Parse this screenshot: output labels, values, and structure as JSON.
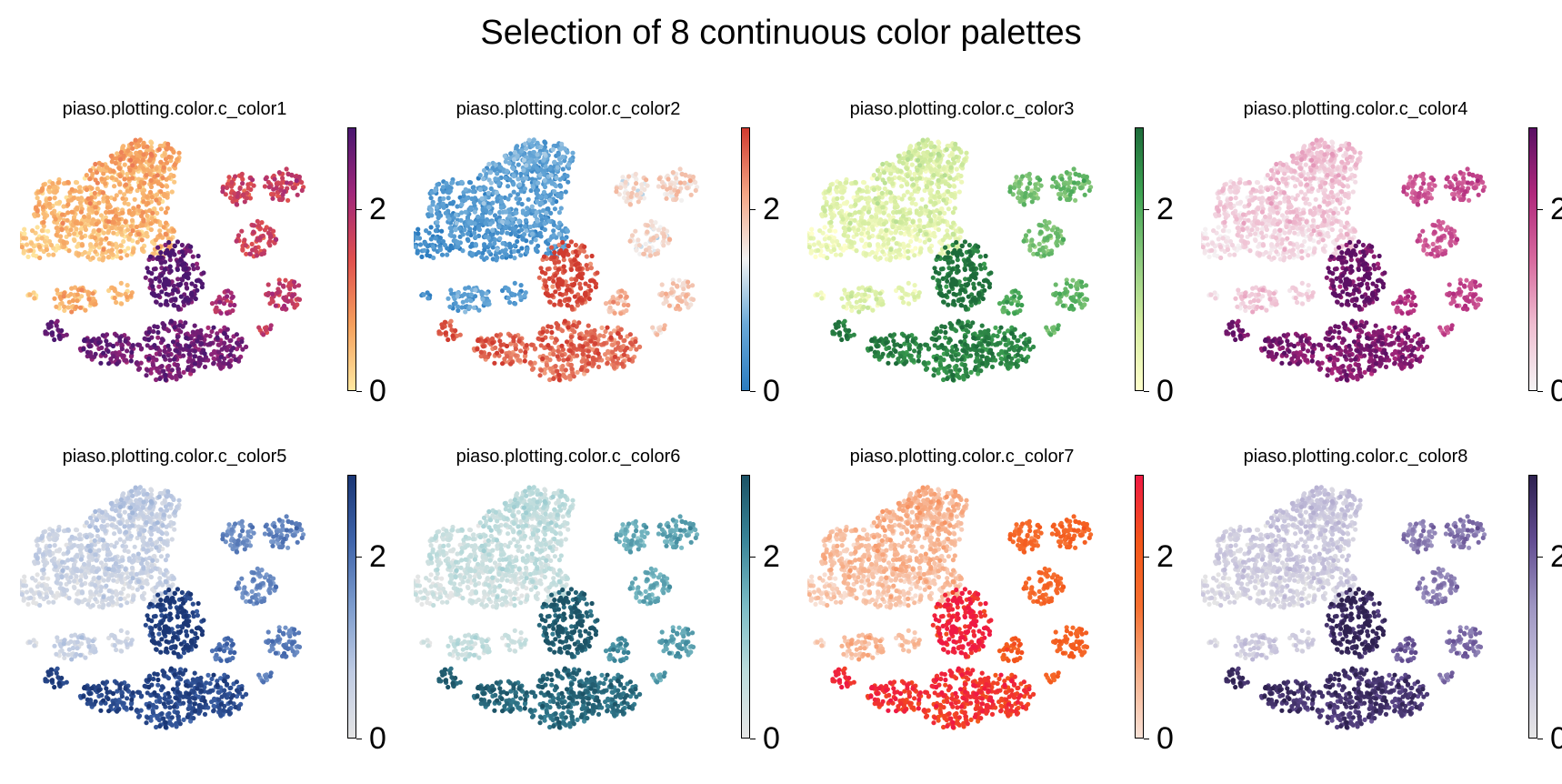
{
  "chart_data": {
    "type": "scatter",
    "title": "Selection of 8 continuous color palettes",
    "colorbar_ticks": [
      0,
      2
    ],
    "value_range": [
      0,
      2.9
    ],
    "grid": false,
    "panels": [
      {
        "title": "piaso.plotting.color.c_color1",
        "colors": [
          "#ffe7a0",
          "#f59f5c",
          "#e0504e",
          "#a0277a",
          "#4a1770"
        ]
      },
      {
        "title": "piaso.plotting.color.c_color2",
        "colors": [
          "#2b7cc0",
          "#6aa9d8",
          "#f2f2f2",
          "#f4a584",
          "#d03b2f"
        ]
      },
      {
        "title": "piaso.plotting.color.c_color3",
        "colors": [
          "#ffffcc",
          "#d5eda0",
          "#8cca7e",
          "#3fa453",
          "#1d6b3a"
        ]
      },
      {
        "title": "piaso.plotting.color.c_color4",
        "colors": [
          "#f5f3f4",
          "#efbdd0",
          "#d7699e",
          "#b0287c",
          "#5a1064"
        ]
      },
      {
        "title": "piaso.plotting.color.c_color5",
        "colors": [
          "#e4e4e4",
          "#bfcbe3",
          "#7d9ccd",
          "#3f64aa",
          "#1a3675"
        ]
      },
      {
        "title": "piaso.plotting.color.c_color6",
        "colors": [
          "#e6e6e6",
          "#bcdcdc",
          "#7cbcc6",
          "#3a8599",
          "#1c5366"
        ]
      },
      {
        "title": "piaso.plotting.color.c_color7",
        "colors": [
          "#f8e1d6",
          "#f7ae88",
          "#f66f2f",
          "#f35519",
          "#ef1943"
        ]
      },
      {
        "title": "piaso.plotting.color.c_color8",
        "colors": [
          "#e6e6e6",
          "#c6c2dc",
          "#9e95c2",
          "#634d92",
          "#2e2150"
        ]
      }
    ]
  }
}
